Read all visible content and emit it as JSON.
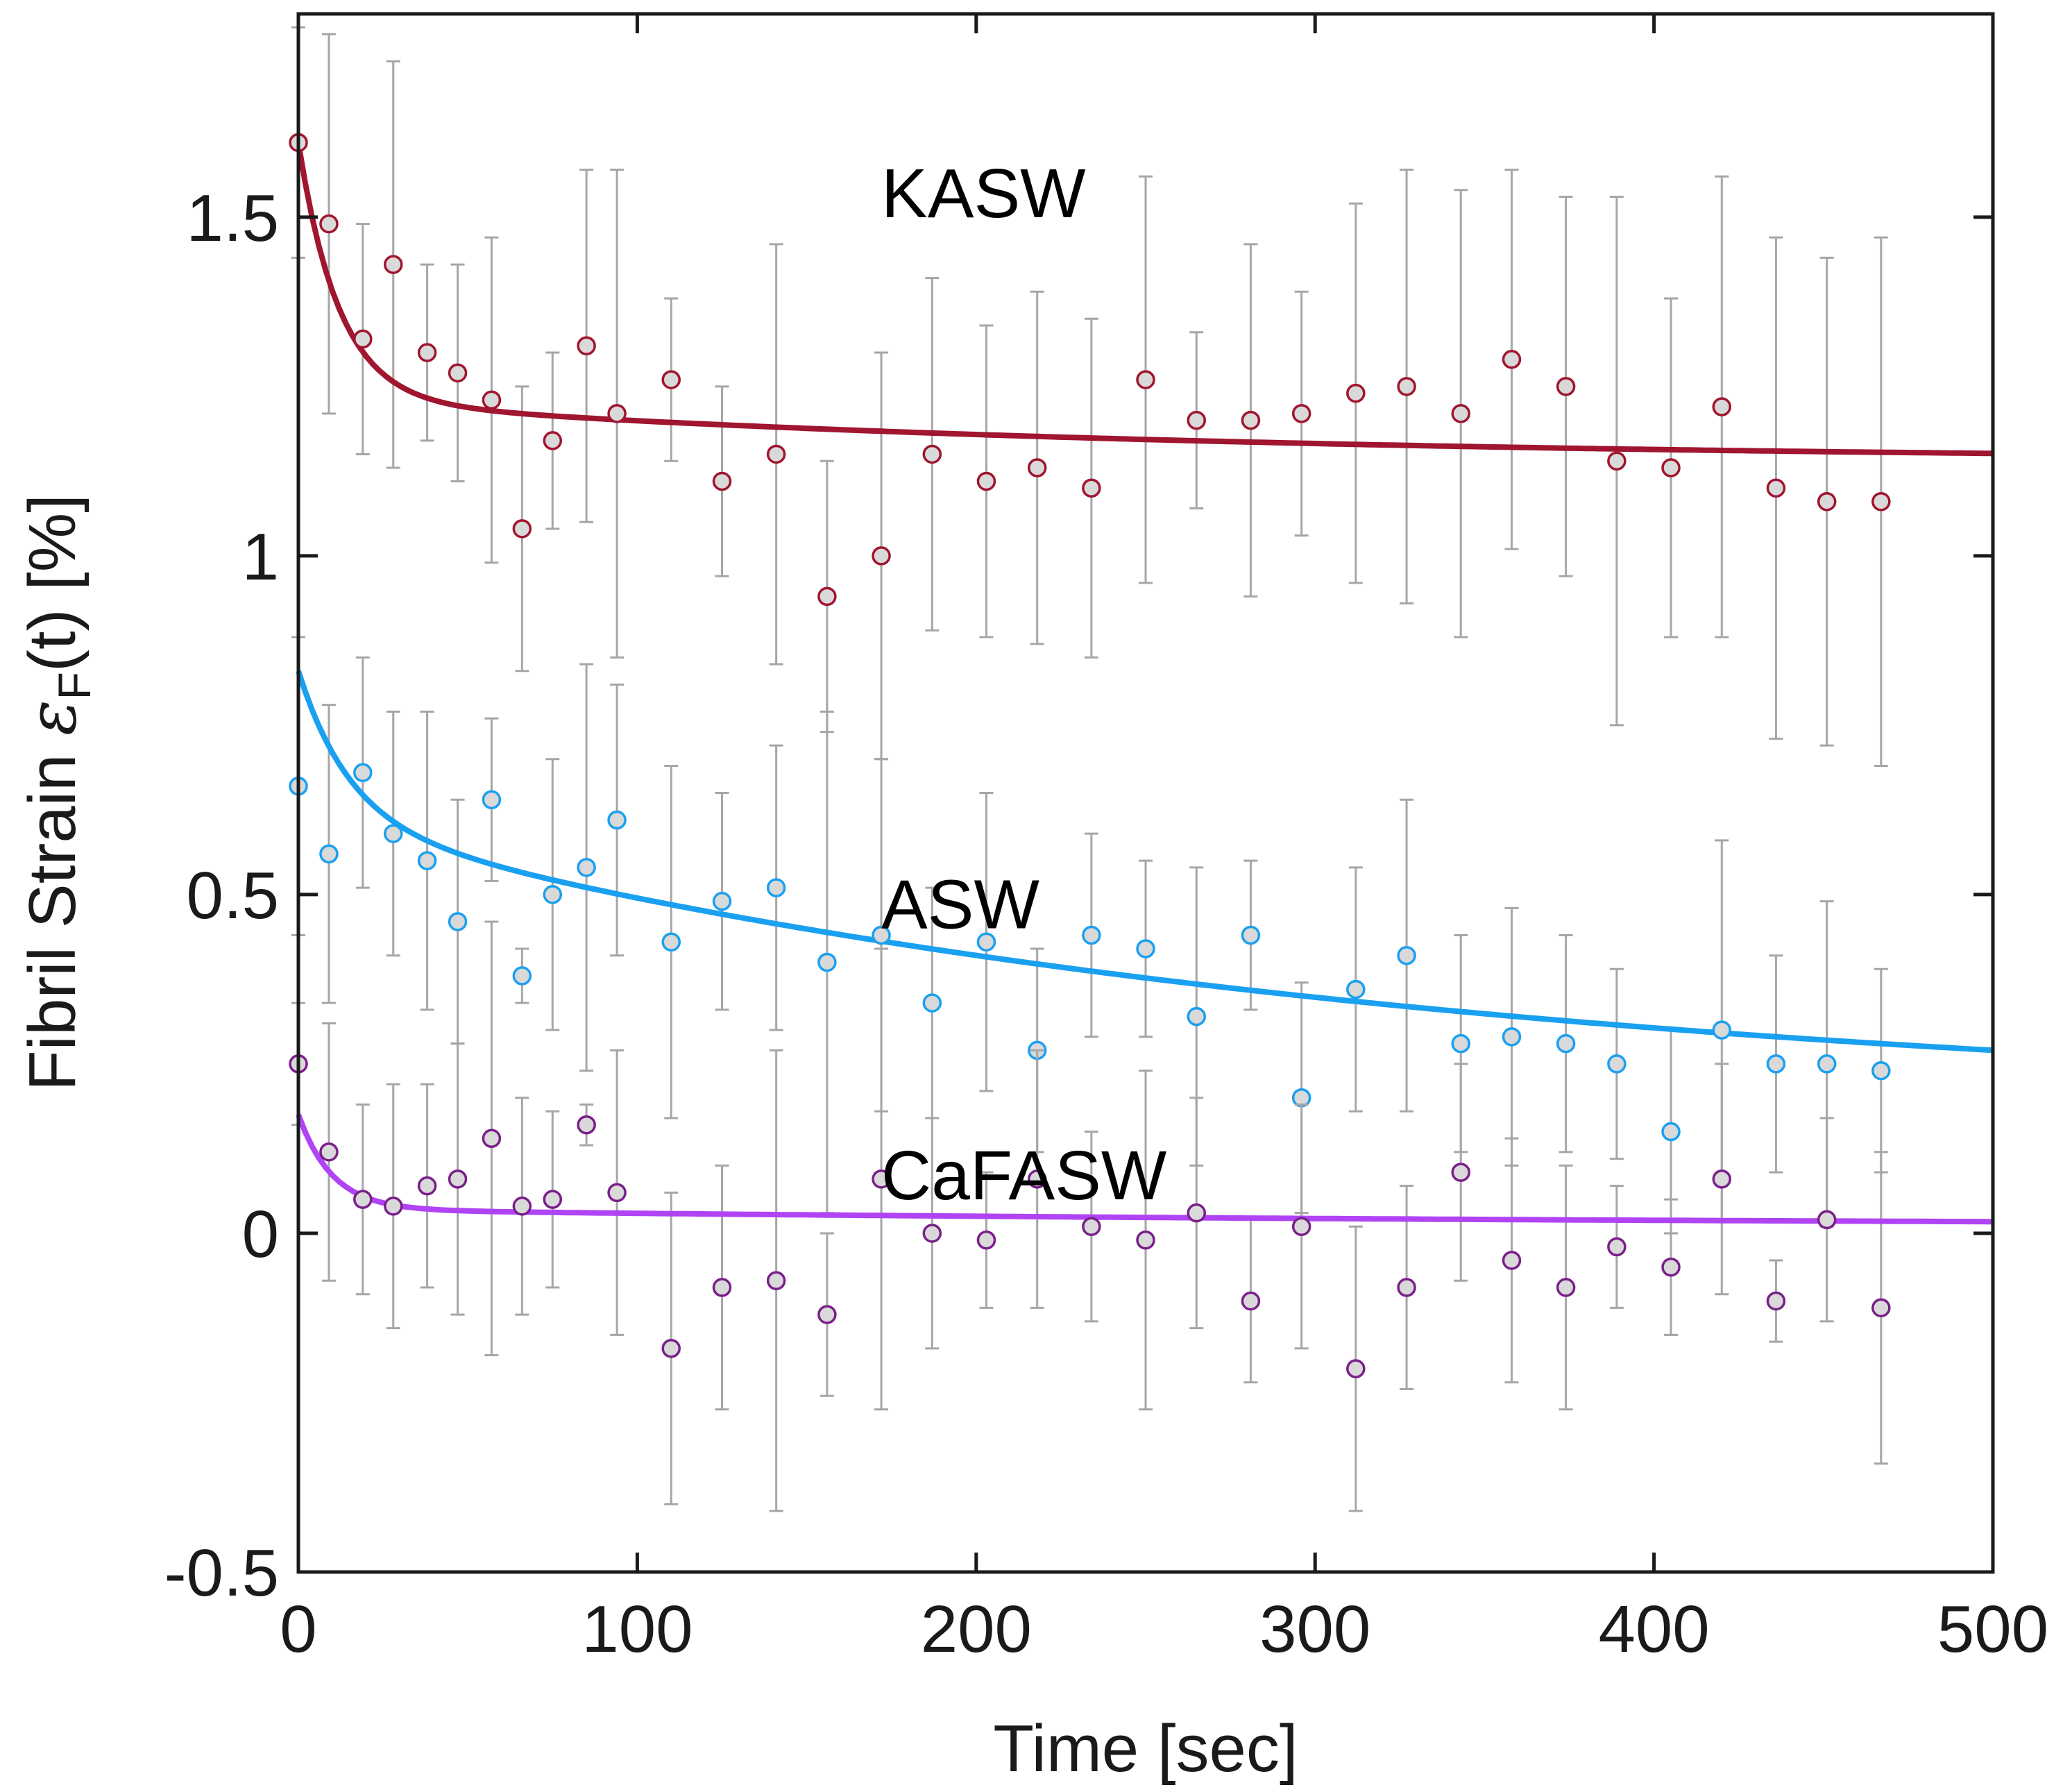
{
  "chart_data": {
    "type": "scatter",
    "title": "",
    "xlabel": "Time [sec]",
    "ylabel": {
      "prefix": "Fibril Strain ",
      "symbol": "ε",
      "subscript": "F",
      "suffix": "(t) [%]"
    },
    "xlim": [
      0,
      500
    ],
    "ylim": [
      -0.5,
      1.8
    ],
    "xticks": [
      0,
      100,
      200,
      300,
      400,
      500
    ],
    "xtick_labels": [
      "0",
      "100",
      "200",
      "300",
      "400",
      "500"
    ],
    "yticks": [
      -0.5,
      0,
      0.5,
      1,
      1.5
    ],
    "ytick_labels": [
      "-0.5",
      "0",
      "0.5",
      "1",
      "1.5"
    ],
    "grid": false,
    "errorbar_color": "#a6a6a6",
    "series": [
      {
        "name": "KASW",
        "label": "KASW",
        "label_pos": [
          172,
          1.5
        ],
        "line_color": "#a0152f",
        "marker_edge": "#a0152f",
        "marker_face": "#d9d9d9",
        "fit": {
          "a1": 0.38,
          "tau1": 12,
          "a2": 0.09,
          "tau2": 240,
          "c": 1.14
        },
        "x": [
          0,
          9,
          19,
          28,
          38,
          47,
          57,
          66,
          75,
          85,
          94,
          110,
          125,
          141,
          156,
          172,
          187,
          203,
          218,
          234,
          250,
          265,
          281,
          296,
          312,
          327,
          343,
          358,
          374,
          389,
          405,
          420,
          436,
          451,
          467
        ],
        "y": [
          1.61,
          1.49,
          1.32,
          1.43,
          1.3,
          1.27,
          1.23,
          1.04,
          1.17,
          1.31,
          1.21,
          1.26,
          1.11,
          1.15,
          0.94,
          1.0,
          1.15,
          1.11,
          1.13,
          1.1,
          1.26,
          1.2,
          1.2,
          1.21,
          1.24,
          1.25,
          1.21,
          1.29,
          1.25,
          1.14,
          1.13,
          1.22,
          1.1,
          1.08,
          1.08
        ],
        "err": [
          0.17,
          0.28,
          0.17,
          0.3,
          0.13,
          0.16,
          0.24,
          0.21,
          0.13,
          0.26,
          0.36,
          0.12,
          0.14,
          0.31,
          0.2,
          0.3,
          0.26,
          0.23,
          0.26,
          0.25,
          0.3,
          0.13,
          0.26,
          0.18,
          0.28,
          0.32,
          0.33,
          0.28,
          0.28,
          0.39,
          0.25,
          0.34,
          0.37,
          0.36,
          0.39
        ]
      },
      {
        "name": "ASW",
        "label": "ASW",
        "label_pos": [
          172,
          0.45
        ],
        "line_color": "#1aa0f0",
        "marker_edge": "#1aa0f0",
        "marker_face": "#d9d9d9",
        "fit": {
          "a1": 0.22,
          "tau1": 15,
          "a2": 0.43,
          "tau2": 320,
          "c": 0.18
        },
        "x": [
          0,
          9,
          19,
          28,
          38,
          47,
          57,
          66,
          75,
          85,
          94,
          110,
          125,
          141,
          156,
          172,
          187,
          203,
          218,
          234,
          250,
          265,
          281,
          296,
          312,
          327,
          343,
          358,
          374,
          389,
          405,
          420,
          436,
          451,
          467
        ],
        "y": [
          0.66,
          0.56,
          0.68,
          0.59,
          0.55,
          0.46,
          0.64,
          0.38,
          0.5,
          0.54,
          0.61,
          0.43,
          0.49,
          0.51,
          0.4,
          0.44,
          0.34,
          0.43,
          0.27,
          0.44,
          0.42,
          0.32,
          0.44,
          0.2,
          0.36,
          0.41,
          0.28,
          0.29,
          0.28,
          0.25,
          0.15,
          0.3,
          0.25,
          0.25,
          0.24
        ],
        "err": [
          0.22,
          0.22,
          0.17,
          0.18,
          0.22,
          0.18,
          0.12,
          0.04,
          0.2,
          0.3,
          0.2,
          0.26,
          0.16,
          0.21,
          0.37,
          0.26,
          0.17,
          0.22,
          0.15,
          0.15,
          0.13,
          0.22,
          0.11,
          0.17,
          0.18,
          0.23,
          0.16,
          0.19,
          0.16,
          0.14,
          0.15,
          0.28,
          0.16,
          0.24,
          0.15
        ]
      },
      {
        "name": "CaFASW",
        "label": "CaFASW",
        "label_pos": [
          172,
          0.05
        ],
        "line_color": "#b044f5",
        "marker_edge": "#7a1f8a",
        "marker_face": "#d9d9d9",
        "fit": {
          "a1": 0.14,
          "tau1": 10,
          "a2": 0.025,
          "tau2": 400,
          "c": 0.01
        },
        "x": [
          0,
          9,
          19,
          28,
          38,
          47,
          57,
          66,
          75,
          85,
          94,
          110,
          125,
          141,
          156,
          172,
          187,
          203,
          218,
          234,
          250,
          265,
          281,
          296,
          312,
          327,
          343,
          358,
          374,
          389,
          405,
          420,
          436,
          451,
          467
        ],
        "y": [
          0.25,
          0.12,
          0.05,
          0.04,
          0.07,
          0.08,
          0.14,
          0.04,
          0.05,
          0.16,
          0.06,
          -0.17,
          -0.08,
          -0.07,
          -0.12,
          0.08,
          0.0,
          -0.01,
          0.08,
          0.01,
          -0.01,
          0.03,
          -0.1,
          0.01,
          -0.2,
          -0.08,
          0.09,
          -0.04,
          -0.08,
          -0.02,
          -0.05,
          0.08,
          -0.1,
          0.02,
          -0.11
        ],
        "err": [
          0.09,
          0.19,
          0.14,
          0.18,
          0.15,
          0.2,
          0.32,
          0.16,
          0.13,
          0.03,
          0.21,
          0.23,
          0.18,
          0.34,
          0.12,
          0.34,
          0.17,
          0.1,
          0.19,
          0.14,
          0.25,
          0.17,
          0.12,
          0.18,
          0.21,
          0.15,
          0.16,
          0.18,
          0.18,
          0.09,
          0.1,
          0.17,
          0.06,
          0.15,
          0.23
        ]
      }
    ]
  }
}
